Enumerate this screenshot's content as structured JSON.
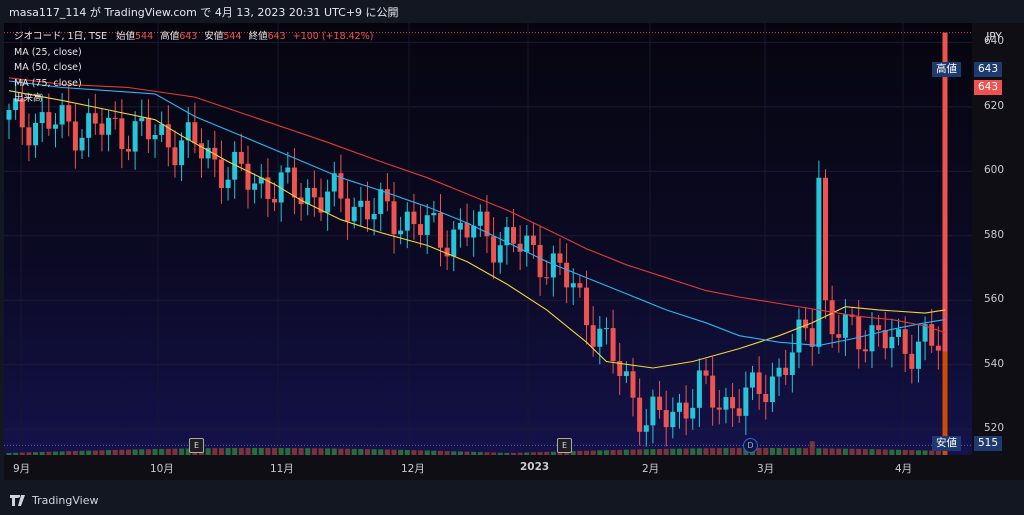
{
  "header": {
    "text": "masa117_114 が TradingView.com で 4月 13, 2023 20:31 UTC+9 に公開"
  },
  "legend": {
    "symbol_line_prefix": "ジオコード, 1日, TSE",
    "open_label": "始値",
    "open": "544",
    "high_label": "高値",
    "high": "643",
    "low_label": "安値",
    "low": "544",
    "close_label": "終値",
    "close": "643",
    "change": "+100 (+18.42%)",
    "ma25": "MA (25, close)",
    "ma50": "MA (50, close)",
    "ma75": "MA (75, close)",
    "volume": "出来高"
  },
  "y_axis": {
    "currency": "JPY",
    "ticks": [
      "640",
      "620",
      "600",
      "580",
      "560",
      "540",
      "520"
    ]
  },
  "x_axis": {
    "labels": [
      "9月",
      "10月",
      "11月",
      "12月",
      "2023",
      "2月",
      "3月",
      "4月"
    ]
  },
  "tags": {
    "high_label": "高値",
    "high_value": "643",
    "last_value": "643",
    "low_label": "安値",
    "low_value": "515"
  },
  "events": {
    "earnings_1": "E",
    "earnings_2": "E",
    "dividend": "D"
  },
  "footer": {
    "brand": "TradingView"
  },
  "colors": {
    "up": "#26c6da",
    "down": "#ef5350",
    "ma25": "#f2d33c",
    "ma50": "#29b6f6",
    "ma75": "#e53935",
    "tag_bg": "#1e3a6e",
    "last_bg": "#ef5350"
  },
  "chart_data": {
    "type": "candlestick",
    "symbol": "ジオコード",
    "interval": "1日",
    "exchange": "TSE",
    "ylim": [
      512,
      646
    ],
    "x_range": [
      "2022-08-29",
      "2023-04-13"
    ],
    "last": {
      "open": 544,
      "high": 643,
      "low": 544,
      "close": 643,
      "change": 100,
      "change_pct": 18.42
    },
    "series": [
      {
        "name": "MA (25, close)",
        "points": [
          [
            0,
            625
          ],
          [
            8,
            622
          ],
          [
            15,
            619
          ],
          [
            22,
            616
          ],
          [
            26,
            611
          ],
          [
            33,
            603
          ],
          [
            40,
            596
          ],
          [
            44,
            591
          ],
          [
            50,
            585
          ],
          [
            56,
            581
          ],
          [
            63,
            577
          ],
          [
            69,
            572
          ],
          [
            75,
            565
          ],
          [
            81,
            557
          ],
          [
            87,
            547
          ],
          [
            90,
            541
          ],
          [
            97,
            539
          ],
          [
            103,
            541
          ],
          [
            110,
            545
          ],
          [
            116,
            549
          ],
          [
            121,
            553
          ],
          [
            126,
            558
          ],
          [
            131,
            557
          ],
          [
            138,
            556
          ],
          [
            141,
            557
          ]
        ]
      },
      {
        "name": "MA (50, close)",
        "points": [
          [
            0,
            628
          ],
          [
            8,
            626
          ],
          [
            15,
            625
          ],
          [
            22,
            624
          ],
          [
            28,
            617
          ],
          [
            35,
            611
          ],
          [
            42,
            605
          ],
          [
            50,
            598
          ],
          [
            56,
            594
          ],
          [
            63,
            589
          ],
          [
            69,
            584
          ],
          [
            75,
            578
          ],
          [
            81,
            572
          ],
          [
            87,
            567
          ],
          [
            93,
            562
          ],
          [
            99,
            557
          ],
          [
            105,
            553
          ],
          [
            110,
            549
          ],
          [
            116,
            547
          ],
          [
            122,
            546
          ],
          [
            127,
            548
          ],
          [
            133,
            551
          ],
          [
            138,
            553
          ],
          [
            141,
            554
          ]
        ]
      },
      {
        "name": "MA (75, close)",
        "points": [
          [
            0,
            629
          ],
          [
            8,
            627
          ],
          [
            18,
            626
          ],
          [
            28,
            623
          ],
          [
            38,
            616
          ],
          [
            48,
            609
          ],
          [
            56,
            603
          ],
          [
            63,
            598
          ],
          [
            69,
            593
          ],
          [
            75,
            588
          ],
          [
            81,
            582
          ],
          [
            87,
            576
          ],
          [
            93,
            571
          ],
          [
            99,
            567
          ],
          [
            105,
            563
          ],
          [
            110,
            561
          ],
          [
            116,
            559
          ],
          [
            122,
            557
          ],
          [
            128,
            555
          ],
          [
            133,
            554
          ],
          [
            138,
            552
          ],
          [
            141,
            550
          ]
        ]
      }
    ]
  }
}
